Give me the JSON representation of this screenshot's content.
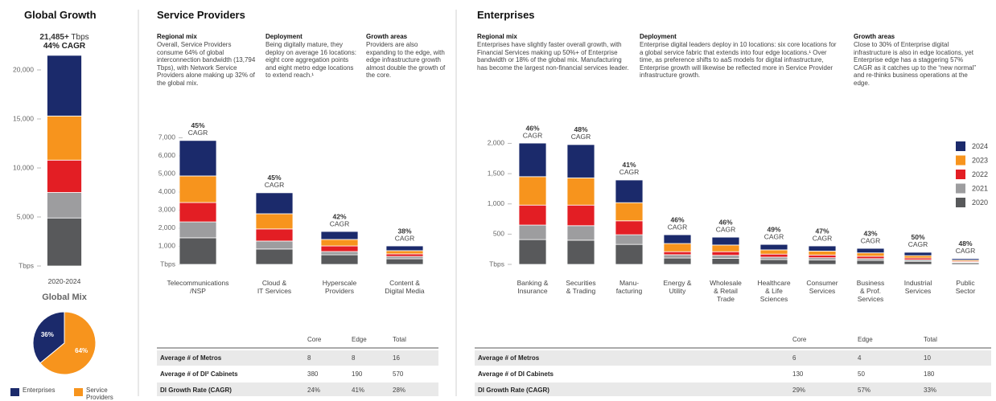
{
  "chart_data": [
    {
      "type": "bar",
      "stacked": true,
      "title": "Global Growth",
      "headline": "21,485+",
      "headline_unit": "Tbps",
      "subtitle": "44% CAGR",
      "categories": [
        "2020-2024"
      ],
      "series": [
        {
          "name": "2020",
          "color": "#58595b",
          "values": [
            4900
          ]
        },
        {
          "name": "2021",
          "color": "#9d9d9f",
          "values": [
            2600
          ]
        },
        {
          "name": "2022",
          "color": "#e31e24",
          "values": [
            3300
          ]
        },
        {
          "name": "2023",
          "color": "#f7941d",
          "values": [
            4500
          ]
        },
        {
          "name": "2024",
          "color": "#1b2a6b",
          "values": [
            6185
          ]
        }
      ],
      "ylim": [
        0,
        22000
      ],
      "yticks": [
        {
          "value": 0,
          "label": "Tbps"
        },
        {
          "value": 5000,
          "label": "5,000"
        },
        {
          "value": 10000,
          "label": "10,000"
        },
        {
          "value": 15000,
          "label": "15,000"
        },
        {
          "value": 20000,
          "label": "20,000"
        }
      ]
    },
    {
      "type": "pie",
      "title": "Global Mix",
      "categories": [
        "Enterprises",
        "Service Providers"
      ],
      "values": [
        36,
        64
      ],
      "value_labels": [
        "36%",
        "64%"
      ],
      "colors": [
        "#1b2a6b",
        "#f7941d"
      ]
    },
    {
      "type": "bar",
      "stacked": true,
      "title": "Service Providers",
      "categories": [
        "Telecommunications\n/NSP",
        "Cloud &\nIT Services",
        "Hyperscale\nProviders",
        "Content &\nDigital Media"
      ],
      "series": [
        {
          "name": "2020",
          "color": "#58595b",
          "values": [
            1470,
            850,
            530,
            310
          ]
        },
        {
          "name": "2021",
          "color": "#9d9d9f",
          "values": [
            880,
            440,
            180,
            130
          ]
        },
        {
          "name": "2022",
          "color": "#e31e24",
          "values": [
            1070,
            670,
            310,
            140
          ]
        },
        {
          "name": "2023",
          "color": "#f7941d",
          "values": [
            1470,
            840,
            360,
            180
          ]
        },
        {
          "name": "2024",
          "color": "#1b2a6b",
          "values": [
            1960,
            1160,
            440,
            260
          ]
        }
      ],
      "annotations": [
        "45%",
        "45%",
        "42%",
        "38%"
      ],
      "annotation_suffix": "CAGR",
      "ylim": [
        0,
        7300
      ],
      "yticks": [
        {
          "value": 0,
          "label": "Tbps"
        },
        {
          "value": 1000,
          "label": "1,000"
        },
        {
          "value": 2000,
          "label": "2,000"
        },
        {
          "value": 3000,
          "label": "3,000"
        },
        {
          "value": 4000,
          "label": "4,000"
        },
        {
          "value": 5000,
          "label": "5,000"
        },
        {
          "value": 6000,
          "label": "6,000"
        },
        {
          "value": 7000,
          "label": "7,000"
        }
      ]
    },
    {
      "type": "bar",
      "stacked": true,
      "title": "Enterprises",
      "legend": "right",
      "categories": [
        "Banking &\nInsurance",
        "Securities\n& Trading",
        "Manu-\nfacturing",
        "Energy &\nUtility",
        "Wholesale\n& Retail\nTrade",
        "Healthcare\n& Life\nSciences",
        "Consumer\nServices",
        "Business\n& Prof.\nServices",
        "Industrial\nServices",
        "Public\nSector"
      ],
      "series": [
        {
          "name": "2020",
          "color": "#58595b",
          "values": [
            410,
            400,
            330,
            105,
            100,
            80,
            75,
            65,
            50,
            25
          ]
        },
        {
          "name": "2021",
          "color": "#9d9d9f",
          "values": [
            240,
            240,
            160,
            55,
            50,
            40,
            35,
            30,
            25,
            10
          ]
        },
        {
          "name": "2022",
          "color": "#e31e24",
          "values": [
            330,
            340,
            230,
            50,
            60,
            50,
            45,
            40,
            30,
            15
          ]
        },
        {
          "name": "2023",
          "color": "#f7941d",
          "values": [
            470,
            450,
            300,
            135,
            110,
            70,
            65,
            55,
            40,
            20
          ]
        },
        {
          "name": "2024",
          "color": "#1b2a6b",
          "values": [
            555,
            550,
            375,
            145,
            130,
            90,
            85,
            75,
            55,
            25
          ]
        }
      ],
      "annotations": [
        "46%",
        "48%",
        "41%",
        "46%",
        "46%",
        "49%",
        "47%",
        "43%",
        "50%",
        "48%"
      ],
      "annotation_suffix": "CAGR",
      "ylim": [
        0,
        2100
      ],
      "yticks": [
        {
          "value": 0,
          "label": "Tbps"
        },
        {
          "value": 500,
          "label": "500"
        },
        {
          "value": 1000,
          "label": "1,000"
        },
        {
          "value": 1500,
          "label": "1,500"
        },
        {
          "value": 2000,
          "label": "2,000"
        }
      ]
    }
  ],
  "service_providers": {
    "columns": [
      {
        "heading": "Regional mix",
        "text": "Overall, Service Providers consume 64% of global interconnection bandwidth (13,794 Tbps), with Network Service Providers alone making up 32% of the global mix."
      },
      {
        "heading": "Deployment",
        "text": "Being digitally mature, they deploy on average 16 locations: eight core aggregation points and eight metro edge locations to extend reach.¹"
      },
      {
        "heading": "Growth areas",
        "text": "Providers are also expanding to the edge, with edge infrastructure growth almost double the growth of the core."
      }
    ],
    "table": {
      "columns": [
        "Core",
        "Edge",
        "Total"
      ],
      "rows": [
        {
          "label": "Average # of Metros",
          "cells": [
            "8",
            "8",
            "16"
          ]
        },
        {
          "label": "Average # of DI² Cabinets",
          "cells": [
            "380",
            "190",
            "570"
          ]
        },
        {
          "label": "DI Growth Rate (CAGR)",
          "cells": [
            "24%",
            "41%",
            "28%"
          ]
        }
      ]
    }
  },
  "enterprises": {
    "columns": [
      {
        "heading": "Regional mix",
        "text": "Enterprises have slightly faster overall growth, with Financial Services making up 50%+ of Enterprise bandwidth or 18% of the global mix. Manufacturing has become the largest non-financial services leader."
      },
      {
        "heading": "Deployment",
        "text": "Enterprise digital leaders deploy in 10 locations: six core locations for a global service fabric that extends into four edge locations.¹ Over time, as preference shifts to aaS models for digital infrastructure, Enterprise growth will likewise be reflected more in Service Provider infrastructure growth."
      },
      {
        "heading": "Growth areas",
        "text": "Close to 30% of Enterprise digital infrastructure is also in edge locations, yet Enterprise edge has a staggering 57% CAGR as it catches up to the “new normal” and re-thinks business operations at the edge."
      }
    ],
    "table": {
      "columns": [
        "Core",
        "Edge",
        "Total"
      ],
      "rows": [
        {
          "label": "Average # of Metros",
          "cells": [
            "6",
            "4",
            "10"
          ]
        },
        {
          "label": "Average # of DI Cabinets",
          "cells": [
            "130",
            "50",
            "180"
          ]
        },
        {
          "label": "DI Growth Rate (CAGR)",
          "cells": [
            "29%",
            "57%",
            "33%"
          ]
        }
      ]
    }
  }
}
